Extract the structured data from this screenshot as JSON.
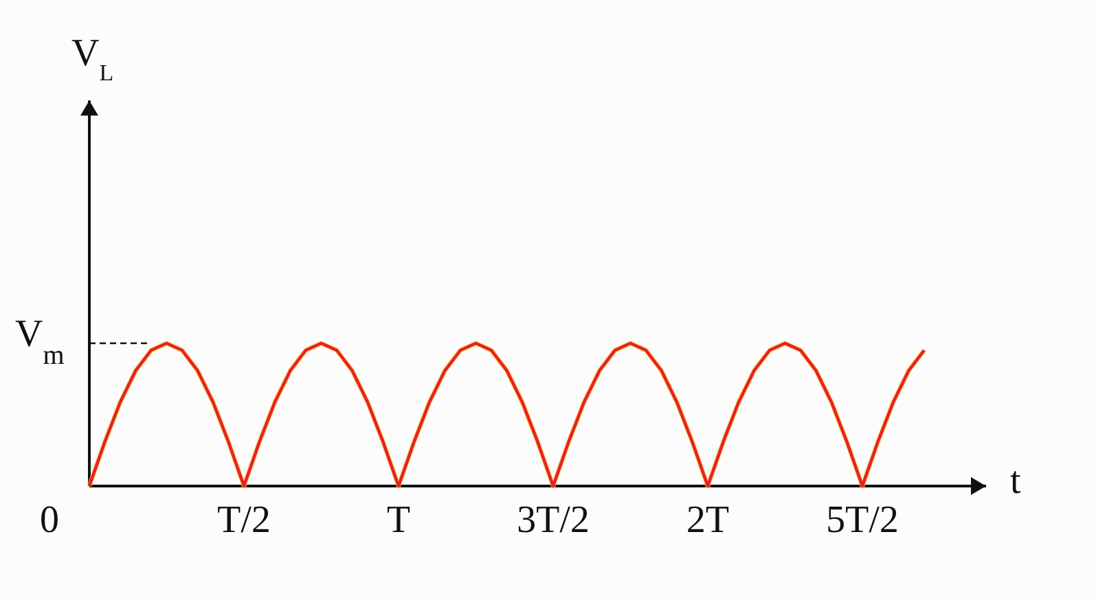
{
  "chart_data": {
    "type": "line",
    "xlabel": "t",
    "ylabel": {
      "main": "V",
      "sub": "L"
    },
    "x": [
      0,
      0.05,
      0.1,
      0.15,
      0.2,
      0.25,
      0.3,
      0.35,
      0.4,
      0.45,
      0.5,
      0.55,
      0.6,
      0.65,
      0.7,
      0.75,
      0.8,
      0.85,
      0.9,
      0.95,
      1,
      1.05,
      1.1,
      1.15,
      1.2,
      1.25,
      1.3,
      1.35,
      1.4,
      1.45,
      1.5,
      1.55,
      1.6,
      1.65,
      1.7,
      1.75,
      1.8,
      1.85,
      1.9,
      1.95,
      2,
      2.05,
      2.1,
      2.15,
      2.2,
      2.25,
      2.3,
      2.35,
      2.4,
      2.45,
      2.5,
      2.55,
      2.6,
      2.65,
      2.7
    ],
    "series": [
      {
        "color": "#e8202a",
        "values": [
          0,
          0.309,
          0.588,
          0.809,
          0.951,
          1,
          0.951,
          0.809,
          0.588,
          0.309,
          0,
          0.309,
          0.588,
          0.809,
          0.951,
          1,
          0.951,
          0.809,
          0.588,
          0.309,
          0,
          0.309,
          0.588,
          0.809,
          0.951,
          1,
          0.951,
          0.809,
          0.588,
          0.309,
          0,
          0.309,
          0.588,
          0.809,
          0.951,
          1,
          0.951,
          0.809,
          0.588,
          0.309,
          0,
          0.309,
          0.588,
          0.809,
          0.951,
          1,
          0.951,
          0.809,
          0.588,
          0.309,
          0,
          0.309,
          0.588,
          0.809,
          0.951
        ]
      }
    ],
    "xlim": [
      0,
      2.9
    ],
    "ylim": [
      0,
      2.7
    ],
    "xticks": [
      0,
      {
        "value": 0.5,
        "label": "T/2"
      },
      {
        "value": 1,
        "label": "T"
      },
      {
        "value": 1.5,
        "label": "3T/2"
      },
      {
        "value": 2,
        "label": "2T"
      },
      {
        "value": 2.5,
        "label": "5T/2"
      }
    ],
    "yticks": [
      {
        "value": 1,
        "label": "V",
        "label_sub": "m"
      }
    ]
  }
}
